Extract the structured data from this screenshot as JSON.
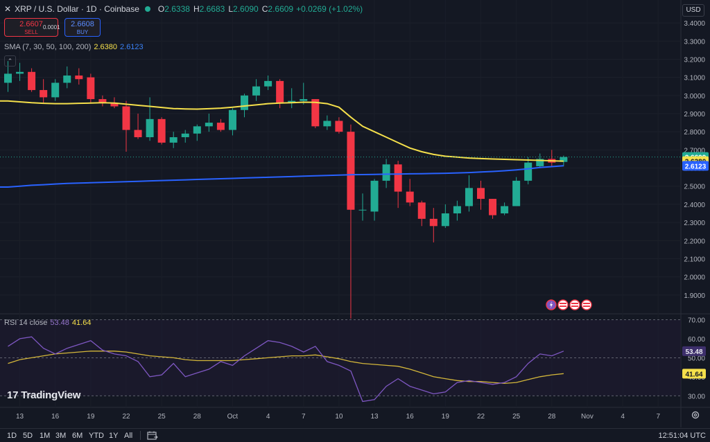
{
  "header": {
    "symbol": "XRP / U.S. Dollar · 1D · Coinbase",
    "o_label": "O",
    "o": "2.6338",
    "h_label": "H",
    "h": "2.6683",
    "l_label": "L",
    "l": "2.6090",
    "c_label": "C",
    "c": "2.6609",
    "change": "+0.0269 (+1.02%)"
  },
  "trade": {
    "sell_price": "2.6607",
    "sell_label": "SELL",
    "spread": "0.0001",
    "buy_price": "2.6608",
    "buy_label": "BUY"
  },
  "sma_legend": {
    "label": "SMA (7, 30, 50, 100, 200)",
    "v1": "2.6380",
    "v2": "2.6123"
  },
  "rsi_legend": {
    "label": "RSI 14 close",
    "v1": "53.48",
    "v2": "41.64"
  },
  "currency": "USD",
  "logo": {
    "mark": "17",
    "text": "TradingView"
  },
  "ranges": [
    "1D",
    "5D",
    "1M",
    "3M",
    "6M",
    "YTD",
    "1Y",
    "All"
  ],
  "clock": "12:51:04 UTC",
  "colors": {
    "up": "#22ab94",
    "down": "#f23645",
    "sma_yellow": "#f5e04b",
    "sma_blue": "#2962ff",
    "rsi": "#7e57c2",
    "bg": "#141823"
  },
  "chart_data": [
    {
      "type": "candlestick",
      "title": "XRP / U.S. Dollar · 1D · Coinbase",
      "ylim": [
        1.8,
        3.45
      ],
      "price_ticks": [
        "3.4000",
        "3.3000",
        "3.2000",
        "3.1000",
        "3.0000",
        "2.9000",
        "2.8000",
        "2.7000",
        "2.6000",
        "2.5000",
        "2.4000",
        "2.3000",
        "2.2000",
        "2.1000",
        "2.0000",
        "1.9000"
      ],
      "x_ticks": [
        "13",
        "16",
        "19",
        "22",
        "25",
        "28",
        "Oct",
        "4",
        "7",
        "10",
        "13",
        "16",
        "19",
        "22",
        "25",
        "28",
        "Nov",
        "4",
        "7"
      ],
      "price_labels": {
        "last": "2.6609",
        "sma_yellow": "2.6380",
        "sma_blue": "2.6123"
      },
      "candles": [
        {
          "o": 3.07,
          "h": 3.19,
          "l": 3.02,
          "c": 3.12
        },
        {
          "o": 3.12,
          "h": 3.18,
          "l": 3.08,
          "c": 3.13
        },
        {
          "o": 3.13,
          "h": 3.15,
          "l": 3.02,
          "c": 3.03
        },
        {
          "o": 3.03,
          "h": 3.09,
          "l": 2.96,
          "c": 2.99
        },
        {
          "o": 2.99,
          "h": 3.09,
          "l": 2.97,
          "c": 3.07
        },
        {
          "o": 3.07,
          "h": 3.16,
          "l": 3.04,
          "c": 3.11
        },
        {
          "o": 3.11,
          "h": 3.15,
          "l": 3.06,
          "c": 3.09
        },
        {
          "o": 3.1,
          "h": 3.12,
          "l": 2.96,
          "c": 2.98
        },
        {
          "o": 2.98,
          "h": 3.0,
          "l": 2.94,
          "c": 2.96
        },
        {
          "o": 2.96,
          "h": 2.99,
          "l": 2.93,
          "c": 2.94
        },
        {
          "o": 2.94,
          "h": 2.97,
          "l": 2.69,
          "c": 2.81
        },
        {
          "o": 2.81,
          "h": 2.9,
          "l": 2.76,
          "c": 2.77
        },
        {
          "o": 2.77,
          "h": 2.99,
          "l": 2.75,
          "c": 2.87
        },
        {
          "o": 2.87,
          "h": 2.88,
          "l": 2.73,
          "c": 2.74
        },
        {
          "o": 2.74,
          "h": 2.8,
          "l": 2.71,
          "c": 2.77
        },
        {
          "o": 2.77,
          "h": 2.81,
          "l": 2.74,
          "c": 2.79
        },
        {
          "o": 2.79,
          "h": 2.84,
          "l": 2.75,
          "c": 2.83
        },
        {
          "o": 2.83,
          "h": 2.9,
          "l": 2.8,
          "c": 2.85
        },
        {
          "o": 2.85,
          "h": 2.87,
          "l": 2.8,
          "c": 2.81
        },
        {
          "o": 2.81,
          "h": 2.93,
          "l": 2.78,
          "c": 2.92
        },
        {
          "o": 2.92,
          "h": 3.01,
          "l": 2.88,
          "c": 3.0
        },
        {
          "o": 3.0,
          "h": 3.09,
          "l": 2.97,
          "c": 3.05
        },
        {
          "o": 3.05,
          "h": 3.11,
          "l": 3.03,
          "c": 3.08
        },
        {
          "o": 3.08,
          "h": 3.09,
          "l": 2.93,
          "c": 2.96
        },
        {
          "o": 2.96,
          "h": 3.04,
          "l": 2.93,
          "c": 2.97
        },
        {
          "o": 2.97,
          "h": 3.07,
          "l": 2.95,
          "c": 2.98
        },
        {
          "o": 2.98,
          "h": 2.98,
          "l": 2.82,
          "c": 2.83
        },
        {
          "o": 2.83,
          "h": 2.89,
          "l": 2.81,
          "c": 2.86
        },
        {
          "o": 2.86,
          "h": 2.88,
          "l": 2.79,
          "c": 2.8
        },
        {
          "o": 2.8,
          "h": 2.84,
          "l": 1.77,
          "c": 2.37
        },
        {
          "o": 2.37,
          "h": 2.46,
          "l": 2.31,
          "c": 2.37
        },
        {
          "o": 2.36,
          "h": 2.54,
          "l": 2.31,
          "c": 2.53
        },
        {
          "o": 2.53,
          "h": 2.65,
          "l": 2.49,
          "c": 2.62
        },
        {
          "o": 2.62,
          "h": 2.64,
          "l": 2.38,
          "c": 2.47
        },
        {
          "o": 2.47,
          "h": 2.54,
          "l": 2.39,
          "c": 2.41
        },
        {
          "o": 2.41,
          "h": 2.42,
          "l": 2.28,
          "c": 2.32
        },
        {
          "o": 2.32,
          "h": 2.38,
          "l": 2.19,
          "c": 2.28
        },
        {
          "o": 2.28,
          "h": 2.4,
          "l": 2.27,
          "c": 2.35
        },
        {
          "o": 2.35,
          "h": 2.42,
          "l": 2.31,
          "c": 2.39
        },
        {
          "o": 2.39,
          "h": 2.56,
          "l": 2.36,
          "c": 2.49
        },
        {
          "o": 2.49,
          "h": 2.53,
          "l": 2.37,
          "c": 2.43
        },
        {
          "o": 2.43,
          "h": 2.43,
          "l": 2.32,
          "c": 2.34
        },
        {
          "o": 2.35,
          "h": 2.41,
          "l": 2.34,
          "c": 2.39
        },
        {
          "o": 2.39,
          "h": 2.55,
          "l": 2.39,
          "c": 2.53
        },
        {
          "o": 2.53,
          "h": 2.66,
          "l": 2.51,
          "c": 2.63
        },
        {
          "o": 2.61,
          "h": 2.68,
          "l": 2.6,
          "c": 2.65
        },
        {
          "o": 2.65,
          "h": 2.7,
          "l": 2.61,
          "c": 2.63
        },
        {
          "o": 2.6338,
          "h": 2.6683,
          "l": 2.609,
          "c": 2.6609
        }
      ],
      "sma_yellow": [
        2.97,
        2.965,
        2.96,
        2.957,
        2.955,
        2.955,
        2.957,
        2.958,
        2.96,
        2.958,
        2.952,
        2.946,
        2.94,
        2.934,
        2.928,
        2.926,
        2.925,
        2.927,
        2.93,
        2.935,
        2.942,
        2.948,
        2.955,
        2.958,
        2.96,
        2.963,
        2.962,
        2.955,
        2.935,
        2.88,
        2.83,
        2.8,
        2.77,
        2.74,
        2.71,
        2.69,
        2.675,
        2.665,
        2.66,
        2.655,
        2.652,
        2.65,
        2.648,
        2.646,
        2.644,
        2.642,
        2.64,
        2.638
      ],
      "sma_blue": [
        2.495,
        2.5,
        2.505,
        2.508,
        2.512,
        2.515,
        2.517,
        2.519,
        2.521,
        2.523,
        2.525,
        2.527,
        2.529,
        2.531,
        2.533,
        2.535,
        2.537,
        2.539,
        2.541,
        2.543,
        2.545,
        2.547,
        2.549,
        2.551,
        2.553,
        2.555,
        2.557,
        2.559,
        2.561,
        2.563,
        2.564,
        2.565,
        2.566,
        2.567,
        2.568,
        2.569,
        2.57,
        2.571,
        2.573,
        2.575,
        2.578,
        2.581,
        2.585,
        2.59,
        2.596,
        2.603,
        2.608,
        2.6123
      ]
    },
    {
      "type": "line",
      "title": "RSI 14 close",
      "ylim": [
        25,
        72
      ],
      "y_ticks": [
        "70.00",
        "60.00",
        "50.00",
        "40.00",
        "30.00"
      ],
      "levels": [
        70,
        50,
        30
      ],
      "value_labels": {
        "rsi": "53.48",
        "signal": "41.64"
      },
      "series": [
        {
          "values": [
            56,
            60,
            61,
            55,
            52,
            55,
            57,
            59,
            54,
            52,
            51,
            48,
            40,
            41,
            47,
            40,
            42,
            44,
            48,
            46,
            51,
            55,
            59,
            58,
            56,
            53,
            56,
            48,
            46,
            43,
            27,
            28,
            35,
            39,
            35,
            33,
            31,
            32,
            37,
            38,
            37,
            36,
            37,
            40,
            47,
            52,
            51,
            53.48
          ]
        },
        {
          "values": [
            47,
            49,
            50,
            51,
            52,
            52.5,
            53,
            53.5,
            53.5,
            53.5,
            53,
            52,
            51,
            50.5,
            50,
            49,
            48.5,
            48.5,
            48.5,
            48.5,
            49,
            49.5,
            50,
            50.5,
            51,
            51,
            51.5,
            50.5,
            49.5,
            48,
            47,
            46.5,
            46,
            45.5,
            44,
            42,
            40,
            39,
            38,
            37.5,
            37.5,
            37,
            36.5,
            37,
            38.5,
            40,
            41,
            41.64
          ]
        }
      ]
    }
  ]
}
